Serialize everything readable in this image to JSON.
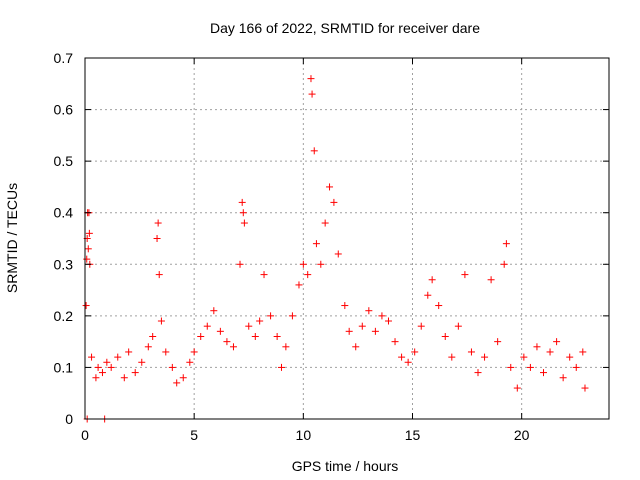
{
  "chart_data": {
    "type": "scatter",
    "title": "Day 166 of 2022, SRMTID for receiver dare",
    "xlabel": "GPS time / hours",
    "ylabel": "SRMTID / TECUs",
    "xlim": [
      0,
      24
    ],
    "ylim": [
      0,
      0.7
    ],
    "xticks": [
      0,
      5,
      10,
      15,
      20
    ],
    "xtick_labels": [
      "0",
      "5",
      "10",
      "15",
      "20"
    ],
    "yticks": [
      0,
      0.1,
      0.2,
      0.3,
      0.4,
      0.5,
      0.6,
      0.7
    ],
    "ytick_labels": [
      "0",
      "0.1",
      "0.2",
      "0.3",
      "0.4",
      "0.5",
      "0.6",
      "0.7"
    ],
    "grid": true,
    "marker": "+",
    "marker_color": "#ff0000",
    "axis_color": "#000000",
    "grid_color": "#a0a0a0",
    "series": [
      {
        "name": "SRMTID",
        "points": [
          [
            0.05,
            0.22
          ],
          [
            0.08,
            0.31
          ],
          [
            0.1,
            0.35
          ],
          [
            0.12,
            0.4
          ],
          [
            0.15,
            0.33
          ],
          [
            0.18,
            0.4
          ],
          [
            0.2,
            0.36
          ],
          [
            0.22,
            0.3
          ],
          [
            0.1,
            0.0
          ],
          [
            0.9,
            0.0
          ],
          [
            0.3,
            0.12
          ],
          [
            0.5,
            0.08
          ],
          [
            0.6,
            0.1
          ],
          [
            0.8,
            0.09
          ],
          [
            1.0,
            0.11
          ],
          [
            1.2,
            0.1
          ],
          [
            1.5,
            0.12
          ],
          [
            1.8,
            0.08
          ],
          [
            2.0,
            0.13
          ],
          [
            2.3,
            0.09
          ],
          [
            2.6,
            0.11
          ],
          [
            2.9,
            0.14
          ],
          [
            3.1,
            0.16
          ],
          [
            3.3,
            0.35
          ],
          [
            3.35,
            0.38
          ],
          [
            3.4,
            0.28
          ],
          [
            3.5,
            0.19
          ],
          [
            3.7,
            0.13
          ],
          [
            4.0,
            0.1
          ],
          [
            4.2,
            0.07
          ],
          [
            4.5,
            0.08
          ],
          [
            4.8,
            0.11
          ],
          [
            5.0,
            0.13
          ],
          [
            5.3,
            0.16
          ],
          [
            5.6,
            0.18
          ],
          [
            5.9,
            0.21
          ],
          [
            6.2,
            0.17
          ],
          [
            6.5,
            0.15
          ],
          [
            6.8,
            0.14
          ],
          [
            7.1,
            0.3
          ],
          [
            7.2,
            0.42
          ],
          [
            7.25,
            0.4
          ],
          [
            7.3,
            0.38
          ],
          [
            7.5,
            0.18
          ],
          [
            7.8,
            0.16
          ],
          [
            8.0,
            0.19
          ],
          [
            8.2,
            0.28
          ],
          [
            8.5,
            0.2
          ],
          [
            8.8,
            0.16
          ],
          [
            9.0,
            0.1
          ],
          [
            9.2,
            0.14
          ],
          [
            9.5,
            0.2
          ],
          [
            9.8,
            0.26
          ],
          [
            10.0,
            0.3
          ],
          [
            10.2,
            0.28
          ],
          [
            10.35,
            0.66
          ],
          [
            10.4,
            0.63
          ],
          [
            10.5,
            0.52
          ],
          [
            10.6,
            0.34
          ],
          [
            10.8,
            0.3
          ],
          [
            11.0,
            0.38
          ],
          [
            11.2,
            0.45
          ],
          [
            11.4,
            0.42
          ],
          [
            11.6,
            0.32
          ],
          [
            11.9,
            0.22
          ],
          [
            12.1,
            0.17
          ],
          [
            12.4,
            0.14
          ],
          [
            12.7,
            0.18
          ],
          [
            13.0,
            0.21
          ],
          [
            13.3,
            0.17
          ],
          [
            13.6,
            0.2
          ],
          [
            13.9,
            0.19
          ],
          [
            14.2,
            0.15
          ],
          [
            14.5,
            0.12
          ],
          [
            14.8,
            0.11
          ],
          [
            15.1,
            0.13
          ],
          [
            15.4,
            0.18
          ],
          [
            15.7,
            0.24
          ],
          [
            15.9,
            0.27
          ],
          [
            16.2,
            0.22
          ],
          [
            16.5,
            0.16
          ],
          [
            16.8,
            0.12
          ],
          [
            17.1,
            0.18
          ],
          [
            17.4,
            0.28
          ],
          [
            17.7,
            0.13
          ],
          [
            18.0,
            0.09
          ],
          [
            18.3,
            0.12
          ],
          [
            18.6,
            0.27
          ],
          [
            18.9,
            0.15
          ],
          [
            19.2,
            0.3
          ],
          [
            19.3,
            0.34
          ],
          [
            19.5,
            0.1
          ],
          [
            19.8,
            0.06
          ],
          [
            20.1,
            0.12
          ],
          [
            20.4,
            0.1
          ],
          [
            20.7,
            0.14
          ],
          [
            21.0,
            0.09
          ],
          [
            21.3,
            0.13
          ],
          [
            21.6,
            0.15
          ],
          [
            21.9,
            0.08
          ],
          [
            22.2,
            0.12
          ],
          [
            22.5,
            0.1
          ],
          [
            22.8,
            0.13
          ],
          [
            22.9,
            0.06
          ]
        ]
      }
    ]
  }
}
